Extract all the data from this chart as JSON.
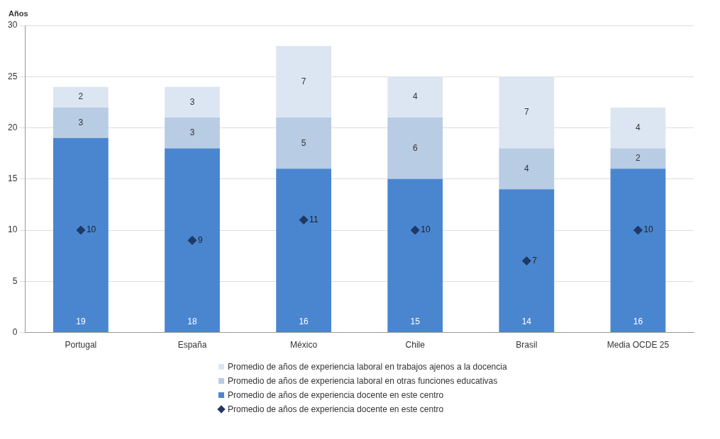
{
  "chart_data": {
    "type": "bar",
    "ylabel": "Años",
    "categories": [
      "Portugal",
      "España",
      "México",
      "Chile",
      "Brasil",
      "Media OCDE 25"
    ],
    "stacked": true,
    "ylim": [
      0,
      30
    ],
    "yticks": [
      0,
      5,
      10,
      15,
      20,
      25,
      30
    ],
    "grid": "y",
    "legend": "bottom",
    "data_labels": true,
    "series": [
      {
        "name": "Promedio de años de experiencia docente en este centro",
        "color": "#4a86d0",
        "values": [
          19,
          18,
          16,
          15,
          14,
          16
        ]
      },
      {
        "name": "Promedio de años de experiencia laboral en otras funciones educativas",
        "color": "#b8cce4",
        "values": [
          3,
          3,
          5,
          6,
          4,
          2
        ]
      },
      {
        "name": "Promedio de años de experiencia laboral en trabajos ajenos a la docencia",
        "color": "#dce6f2",
        "values": [
          2,
          3,
          7,
          4,
          7,
          4
        ]
      },
      {
        "name": "Promedio de años de experiencia docente en este centro",
        "type": "scatter",
        "marker": "diamond",
        "color": "#1f3864",
        "values": [
          10,
          9,
          11,
          10,
          7,
          10
        ]
      }
    ]
  }
}
